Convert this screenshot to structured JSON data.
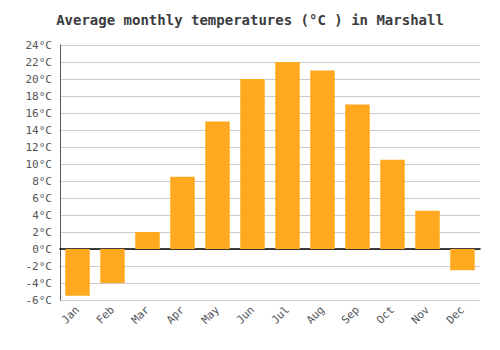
{
  "chart_data": {
    "type": "bar",
    "title": "Average monthly temperatures (°C ) in Marshall",
    "categories": [
      "Jan",
      "Feb",
      "Mar",
      "Apr",
      "May",
      "Jun",
      "Jul",
      "Aug",
      "Sep",
      "Oct",
      "Nov",
      "Dec"
    ],
    "values": [
      -5.5,
      -4.0,
      2.0,
      8.5,
      15.0,
      20.0,
      22.0,
      21.0,
      17.0,
      10.5,
      4.5,
      -2.5
    ],
    "color": "#FFA820",
    "ylim": [
      -6,
      24
    ],
    "yticks": [
      {
        "value": -6,
        "label": "-6°C"
      },
      {
        "value": -4,
        "label": "-4°C"
      },
      {
        "value": -2,
        "label": "-2°C"
      },
      {
        "value": 0,
        "label": "0°C"
      },
      {
        "value": 2,
        "label": "2°C"
      },
      {
        "value": 4,
        "label": "4°C"
      },
      {
        "value": 6,
        "label": "6°C"
      },
      {
        "value": 8,
        "label": "8°C"
      },
      {
        "value": 10,
        "label": "10°C"
      },
      {
        "value": 12,
        "label": "12°C"
      },
      {
        "value": 14,
        "label": "14°C"
      },
      {
        "value": 16,
        "label": "16°C"
      },
      {
        "value": 18,
        "label": "18°C"
      },
      {
        "value": 20,
        "label": "20°C"
      },
      {
        "value": 22,
        "label": "22°C"
      },
      {
        "value": 24,
        "label": "24°C"
      }
    ],
    "grid": true
  }
}
